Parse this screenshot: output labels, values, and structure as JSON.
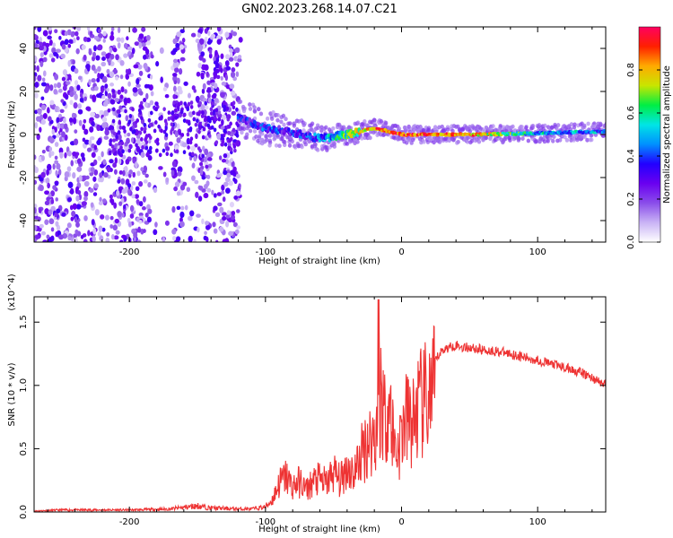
{
  "title": "GN02.2023.268.14.07.C21",
  "chart_data": [
    {
      "type": "heatmap",
      "xlabel": "Height of straight line (km)",
      "ylabel": "Frequency (Hz)",
      "xlim": [
        -270,
        150
      ],
      "ylim": [
        -50,
        50
      ],
      "xticks": [
        -200,
        -100,
        0,
        100
      ],
      "yticks": [
        -40,
        -20,
        0,
        20,
        40
      ],
      "colorbar": {
        "label": "Normalized spectral amplitude",
        "range": [
          0,
          1
        ],
        "ticks": [
          0.0,
          0.2,
          0.4,
          0.6,
          0.8
        ],
        "colors": [
          "#ffffff",
          "#c9b3f5",
          "#8a4dea",
          "#6a00f0",
          "#2200ff",
          "#0090ff",
          "#00e5e5",
          "#00ee44",
          "#c8e600",
          "#ffaa00",
          "#ff2000",
          "#ff0060"
        ]
      },
      "signal_trace": {
        "x": [
          -120,
          -100,
          -80,
          -60,
          -40,
          -20,
          0,
          50,
          100,
          150
        ],
        "freq": [
          8,
          3,
          1,
          -2,
          0,
          3,
          0,
          0,
          0.5,
          1.5
        ],
        "amplitude": [
          0.3,
          0.35,
          0.3,
          0.4,
          0.6,
          0.85,
          0.9,
          0.85,
          0.5,
          0.45
        ]
      }
    },
    {
      "type": "line",
      "xlabel": "Height of straight line (km)",
      "ylabel": "SNR (10 * v/v)",
      "y_multiplier": "(x10^4)",
      "xlim": [
        -270,
        150
      ],
      "ylim": [
        0,
        1.7
      ],
      "xticks": [
        -200,
        -100,
        0,
        100
      ],
      "yticks": [
        0.0,
        0.5,
        1.0,
        1.5
      ],
      "ytick_labels": [
        "0.0",
        "0.5",
        "1.0",
        "1.5"
      ],
      "series": [
        {
          "name": "SNR",
          "color": "#ee3333",
          "x": [
            -270,
            -250,
            -200,
            -170,
            -150,
            -140,
            -120,
            -110,
            -100,
            -95,
            -90,
            -85,
            -80,
            -75,
            -70,
            -65,
            -60,
            -55,
            -50,
            -45,
            -40,
            -35,
            -30,
            -28,
            -25,
            -22,
            -20,
            -18,
            -15,
            -12,
            -10,
            -8,
            -5,
            -2,
            0,
            2,
            5,
            8,
            10,
            12,
            15,
            20,
            25,
            30,
            35,
            40,
            45,
            50,
            60,
            70,
            80,
            90,
            100,
            110,
            120,
            130,
            140,
            150
          ],
          "y": [
            0.01,
            0.02,
            0.02,
            0.03,
            0.06,
            0.04,
            0.03,
            0.03,
            0.05,
            0.12,
            0.28,
            0.35,
            0.25,
            0.3,
            0.22,
            0.3,
            0.32,
            0.28,
            0.4,
            0.3,
            0.45,
            0.38,
            0.55,
            0.62,
            0.7,
            0.72,
            0.75,
            0.85,
            1.2,
            0.9,
            1.15,
            0.95,
            0.65,
            0.62,
            0.78,
            0.88,
            0.92,
            0.86,
            0.95,
            1.02,
            1.05,
            1.12,
            1.2,
            1.28,
            1.3,
            1.32,
            1.3,
            1.3,
            1.28,
            1.27,
            1.25,
            1.22,
            1.2,
            1.17,
            1.14,
            1.11,
            1.06,
            1.0
          ]
        }
      ]
    }
  ]
}
